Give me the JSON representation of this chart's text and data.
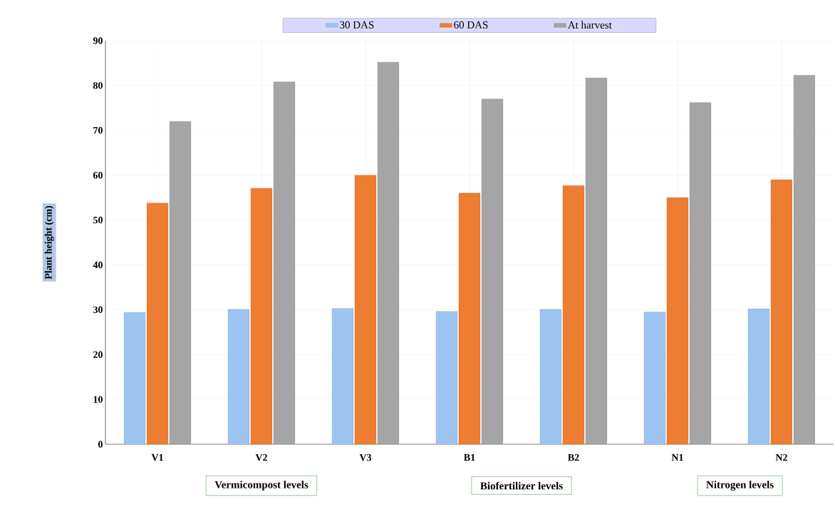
{
  "chart_data": {
    "type": "bar",
    "ylabel": "Plant height (cm)",
    "categories": [
      "V1",
      "V2",
      "V3",
      "B1",
      "B2",
      "N1",
      "N2"
    ],
    "series": [
      {
        "name": "30 DAS",
        "color": "#9dc3f0",
        "values": [
          29.4,
          30.1,
          30.3,
          29.6,
          30.1,
          29.5,
          30.2
        ]
      },
      {
        "name": "60 DAS",
        "color": "#ed7d31",
        "values": [
          53.8,
          57.1,
          60.0,
          56.0,
          57.7,
          55.0,
          59.0
        ]
      },
      {
        "name": "At harvest",
        "color": "#a5a5a5",
        "values": [
          72.0,
          80.8,
          85.2,
          77.0,
          81.7,
          76.2,
          82.3
        ]
      }
    ],
    "ylim": [
      0,
      90
    ],
    "yticks": [
      0,
      10,
      20,
      30,
      40,
      50,
      60,
      70,
      80,
      90
    ],
    "grid": true,
    "legend": "top",
    "annotations": [
      "Vermicompost levels",
      "Biofertilizer levels",
      "Nitrogen levels"
    ]
  }
}
